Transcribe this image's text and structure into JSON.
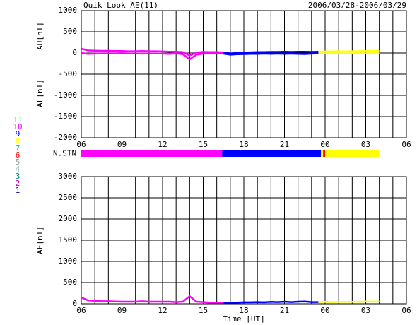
{
  "title": "Quik Look AE(11)",
  "date_range": "2006/03/28-2006/03/29",
  "chart_data": [
    {
      "type": "line",
      "ylabels": [
        "AU[nT]",
        "AL[nT]"
      ],
      "xlim": [
        6,
        30
      ],
      "xticks": [
        {
          "value": 6,
          "label": "06"
        },
        {
          "value": 9,
          "label": "09"
        },
        12,
        15,
        18,
        21,
        {
          "value": 24,
          "label": "00"
        },
        {
          "value": 27,
          "label": "03"
        },
        {
          "value": 30,
          "label": "06"
        }
      ],
      "xgrid": [
        7,
        8,
        10,
        11,
        13,
        14,
        16,
        17,
        19,
        20,
        22,
        23,
        25,
        26,
        28,
        29
      ],
      "ylim": [
        -2000,
        1000
      ],
      "yticks": [
        1000,
        500,
        0,
        -500,
        -1000,
        -1500,
        -2000
      ],
      "x": [
        6,
        6.5,
        7,
        7.5,
        8,
        8.5,
        9,
        9.5,
        10,
        10.5,
        11,
        11.5,
        12,
        12.5,
        13,
        13.5,
        14,
        14.5,
        15,
        15.5,
        16,
        16.5,
        17,
        17.5,
        18,
        18.5,
        19,
        19.5,
        20,
        20.5,
        21,
        21.5,
        22,
        22.5,
        23,
        23.5,
        24,
        24.5,
        25,
        25.5,
        26,
        26.5,
        27,
        27.5,
        28
      ],
      "series": [
        {
          "values": [
            100,
            60,
            55,
            50,
            50,
            45,
            45,
            40,
            40,
            45,
            40,
            40,
            35,
            30,
            30,
            20,
            -60,
            10,
            25,
            20,
            20,
            15,
            -10,
            0,
            10,
            15,
            20,
            20,
            25,
            25,
            30,
            25,
            30,
            30,
            25,
            30,
            35,
            35,
            40,
            35,
            40,
            40,
            45,
            45,
            45
          ]
        },
        {
          "values": [
            0,
            -20,
            -15,
            -10,
            -10,
            -10,
            -5,
            -10,
            -10,
            -15,
            -10,
            -10,
            -15,
            -20,
            -10,
            -30,
            -150,
            -40,
            -15,
            -10,
            -10,
            -15,
            -40,
            -30,
            -25,
            -20,
            -20,
            -15,
            -20,
            -15,
            -20,
            -15,
            -20,
            -25,
            -15,
            -10,
            -10,
            -5,
            -5,
            -10,
            -5,
            -5,
            -10,
            -5,
            -10
          ]
        }
      ]
    },
    {
      "type": "strip",
      "label": "N.STN",
      "xlim": [
        6,
        30
      ],
      "segments": [
        {
          "station": 10,
          "start": 6,
          "end": 16.4
        },
        {
          "station": 9,
          "start": 16.4,
          "end": 23.7
        },
        {
          "station": 8,
          "start": 23.7,
          "end": 23.85
        },
        {
          "station": 6,
          "start": 23.85,
          "end": 24.0
        },
        {
          "station": 8,
          "start": 24.0,
          "end": 28.0
        }
      ],
      "legend": [
        {
          "number": 11,
          "color": "#00e0e0"
        },
        {
          "number": 10,
          "color": "#ff00ff"
        },
        {
          "number": 9,
          "color": "#0000ff"
        },
        {
          "number": 8,
          "color": "#ffff00"
        },
        {
          "number": 7,
          "color": "#00c080"
        },
        {
          "number": 6,
          "color": "#ff0000"
        },
        {
          "number": 5,
          "color": "#a0a0a0"
        },
        {
          "number": 4,
          "color": "#90c8c8"
        },
        {
          "number": 3,
          "color": "#008888"
        },
        {
          "number": 2,
          "color": "#c000c0"
        },
        {
          "number": 1,
          "color": "#0000a0"
        }
      ]
    },
    {
      "type": "line",
      "ylabels": [
        "AE[nT]"
      ],
      "xlabel": "Time [UT]",
      "xlim": [
        6,
        30
      ],
      "xticks": [
        {
          "value": 6,
          "label": "06"
        },
        {
          "value": 9,
          "label": "09"
        },
        12,
        15,
        18,
        21,
        {
          "value": 24,
          "label": "00"
        },
        {
          "value": 27,
          "label": "03"
        },
        {
          "value": 30,
          "label": "06"
        }
      ],
      "xgrid": [
        7,
        8,
        10,
        11,
        13,
        14,
        16,
        17,
        19,
        20,
        22,
        23,
        25,
        26,
        28,
        29
      ],
      "ylim": [
        0,
        3000
      ],
      "yticks": [
        3000,
        2500,
        2000,
        1500,
        1000,
        500,
        0
      ],
      "x": [
        6,
        6.5,
        7,
        7.5,
        8,
        8.5,
        9,
        9.5,
        10,
        10.5,
        11,
        11.5,
        12,
        12.5,
        13,
        13.5,
        14,
        14.5,
        15,
        15.5,
        16,
        16.5,
        17,
        17.5,
        18,
        18.5,
        19,
        19.5,
        20,
        20.5,
        21,
        21.5,
        22,
        22.5,
        23,
        23.5,
        24,
        24.5,
        25,
        25.5,
        26,
        26.5,
        27,
        27.5,
        28
      ],
      "series": [
        {
          "values": [
            150,
            80,
            70,
            60,
            60,
            55,
            50,
            50,
            50,
            60,
            50,
            50,
            50,
            50,
            40,
            50,
            180,
            50,
            40,
            30,
            30,
            30,
            30,
            30,
            35,
            35,
            40,
            35,
            45,
            40,
            50,
            40,
            50,
            55,
            40,
            40,
            45,
            40,
            45,
            45,
            45,
            45,
            55,
            50,
            55
          ]
        }
      ]
    }
  ]
}
